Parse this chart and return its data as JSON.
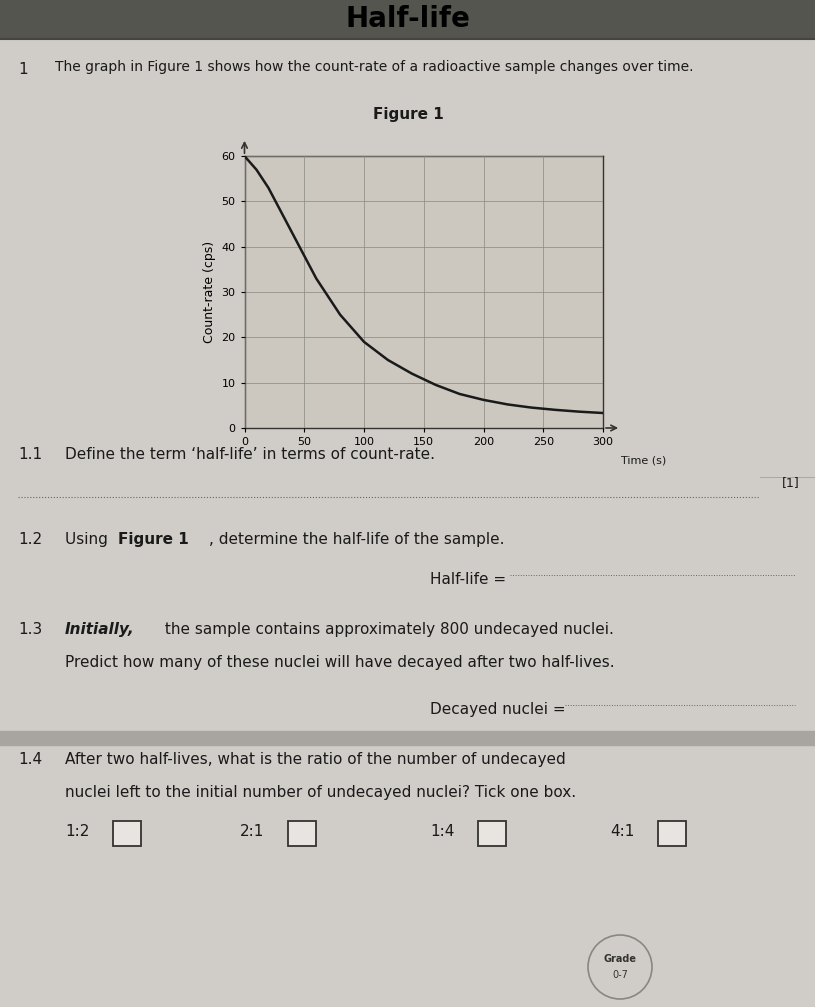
{
  "title_top": "Half-life",
  "q_number": "1",
  "intro_text": "The graph in Figure 1 shows how the count-rate of a radioactive sample changes over time.",
  "figure_title": "Figure 1",
  "graph_xlabel": "Time (s)",
  "graph_ylabel": "Count-rate (cps)",
  "x_ticks": [
    0,
    50,
    100,
    150,
    200,
    250,
    300
  ],
  "y_ticks": [
    0,
    10,
    20,
    30,
    40,
    50,
    60
  ],
  "x_max": 300,
  "y_max": 60,
  "curve_x": [
    0,
    10,
    20,
    30,
    40,
    50,
    60,
    70,
    80,
    90,
    100,
    120,
    140,
    160,
    180,
    200,
    220,
    240,
    260,
    280,
    300
  ],
  "curve_y": [
    60,
    57,
    53,
    48,
    43,
    38,
    33,
    29,
    25,
    22,
    19,
    15,
    12,
    9.5,
    7.5,
    6.2,
    5.2,
    4.5,
    4.0,
    3.6,
    3.3
  ],
  "q1_number": "1.1",
  "q1_text": "Define the term ‘half-life’ in terms of count-rate.",
  "q1_mark": "[1]",
  "q2_number": "1.2",
  "q2_text": "Using Figure 1, determine the half-life of the sample.",
  "q2_answer_label": "Half-life = ",
  "q3_number": "1.3",
  "q3_line1": "Initially, the sample contains approximately 800 undecayed nuclei.",
  "q3_line2": "Predict how many of these nuclei will have decayed after two half-lives.",
  "q3_answer_label": "Decayed nuclei = ",
  "q4_number": "1.4",
  "q4_line1": "After two half-lives, what is the ratio of the number of undecayed",
  "q4_line2": "nuclei left to the initial number of undecayed nuclei? Tick one box.",
  "q4_options": [
    "1:2",
    "2:1",
    "1:4",
    "4:1"
  ],
  "bg_color": "#b8b8b8",
  "paper_color": "#d0ccc8",
  "text_color": "#1a1a1a",
  "graph_bg": "#ccc8c0",
  "grid_color": "#888880",
  "line_color": "#1a1a1a",
  "header_color": "#555550"
}
